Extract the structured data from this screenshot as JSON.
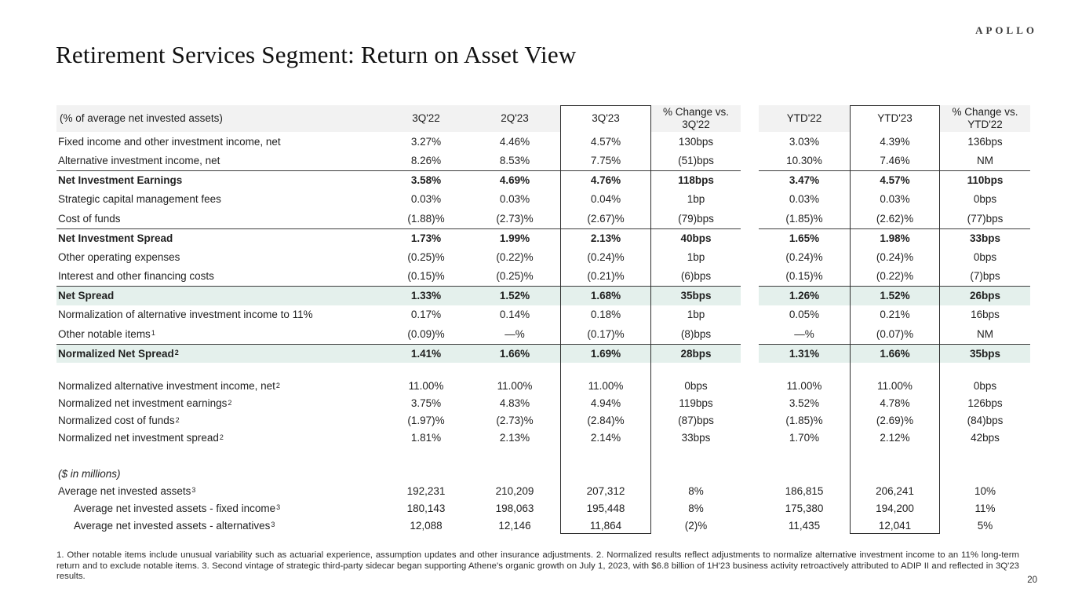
{
  "logo": "APOLLO",
  "title": "Retirement Services Segment: Return on Asset View",
  "page_number": "20",
  "table": {
    "columns": {
      "label": "(% of average net invested assets)",
      "c1": "3Q'22",
      "c2": "2Q'23",
      "c3": "3Q'23",
      "c4": "% Change vs. 3Q'22",
      "c5": "YTD'22",
      "c6": "YTD'23",
      "c7": "% Change vs. YTD'22"
    },
    "rows": [
      {
        "label": "Fixed income and other investment income, net",
        "values": [
          "3.27%",
          "4.46%",
          "4.57%",
          "130bps",
          "3.03%",
          "4.39%",
          "136bps"
        ]
      },
      {
        "label": "Alternative investment income, net",
        "values": [
          "8.26%",
          "8.53%",
          "7.75%",
          "(51)bps",
          "10.30%",
          "7.46%",
          "NM"
        ]
      },
      {
        "label": "Net Investment Earnings",
        "classes": "bold rule",
        "values": [
          "3.58%",
          "4.69%",
          "4.76%",
          "118bps",
          "3.47%",
          "4.57%",
          "110bps"
        ]
      },
      {
        "label": "Strategic capital management fees",
        "values": [
          "0.03%",
          "0.03%",
          "0.04%",
          "1bp",
          "0.03%",
          "0.03%",
          "0bps"
        ]
      },
      {
        "label": "Cost of funds",
        "values": [
          "(1.88)%",
          "(2.73)%",
          "(2.67)%",
          "(79)bps",
          "(1.85)%",
          "(2.62)%",
          "(77)bps"
        ]
      },
      {
        "label": "Net Investment Spread",
        "classes": "bold rule",
        "values": [
          "1.73%",
          "1.99%",
          "2.13%",
          "40bps",
          "1.65%",
          "1.98%",
          "33bps"
        ]
      },
      {
        "label": "Other operating expenses",
        "values": [
          "(0.25)%",
          "(0.22)%",
          "(0.24)%",
          "1bp",
          "(0.24)%",
          "(0.24)%",
          "0bps"
        ]
      },
      {
        "label": "Interest and other financing costs",
        "values": [
          "(0.15)%",
          "(0.25)%",
          "(0.21)%",
          "(6)bps",
          "(0.15)%",
          "(0.22)%",
          "(7)bps"
        ]
      },
      {
        "label": "Net Spread",
        "classes": "bold rule hl",
        "values": [
          "1.33%",
          "1.52%",
          "1.68%",
          "35bps",
          "1.26%",
          "1.52%",
          "26bps"
        ]
      },
      {
        "label": "Normalization of alternative investment income to 11%",
        "values": [
          "0.17%",
          "0.14%",
          "0.18%",
          "1bp",
          "0.05%",
          "0.21%",
          "16bps"
        ]
      },
      {
        "label": "Other notable items",
        "sup": "1",
        "values": [
          "(0.09)%",
          "—%",
          "(0.17)%",
          "(8)bps",
          "—%",
          "(0.07)%",
          "NM"
        ]
      },
      {
        "label": "Normalized Net Spread",
        "sup": "2",
        "classes": "bold rule hl",
        "values": [
          "1.41%",
          "1.66%",
          "1.69%",
          "28bps",
          "1.31%",
          "1.66%",
          "35bps"
        ]
      },
      {
        "classes": "sp18",
        "values": []
      },
      {
        "label": "Normalized alternative investment income, net",
        "sup": "2",
        "classes": "sm",
        "values": [
          "11.00%",
          "11.00%",
          "11.00%",
          "0bps",
          "11.00%",
          "11.00%",
          "0bps"
        ]
      },
      {
        "label": "Normalized net investment earnings",
        "sup": "2",
        "classes": "sm",
        "values": [
          "3.75%",
          "4.83%",
          "4.94%",
          "119bps",
          "3.52%",
          "4.78%",
          "126bps"
        ]
      },
      {
        "label": "Normalized cost of funds",
        "sup": "2",
        "classes": "sm",
        "values": [
          "(1.97)%",
          "(2.73)%",
          "(2.84)%",
          "(87)bps",
          "(1.85)%",
          "(2.69)%",
          "(84)bps"
        ]
      },
      {
        "label": "Normalized net investment spread",
        "sup": "2",
        "classes": "sm",
        "values": [
          "1.81%",
          "2.13%",
          "2.14%",
          "33bps",
          "1.70%",
          "2.12%",
          "42bps"
        ]
      },
      {
        "classes": "sp24",
        "values": []
      },
      {
        "label": "($ in millions)",
        "classes": "sm italic",
        "values": []
      },
      {
        "label": "Average net invested assets",
        "sup": "3",
        "classes": "sm",
        "values": [
          "192,231",
          "210,209",
          "207,312",
          "8%",
          "186,815",
          "206,241",
          "10%"
        ]
      },
      {
        "label": "Average net invested assets - fixed income",
        "sup": "3",
        "classes": "sm indent",
        "values": [
          "180,143",
          "198,063",
          "195,448",
          "8%",
          "175,380",
          "194,200",
          "11%"
        ]
      },
      {
        "label": "Average net invested assets - alternatives",
        "sup": "3",
        "classes": "sm indent",
        "values": [
          "12,088",
          "12,146",
          "11,864",
          "(2)%",
          "11,435",
          "12,041",
          "5%"
        ]
      }
    ]
  },
  "footnote": "1. Other notable items include unusual variability such as actuarial experience, assumption updates and other insurance adjustments. 2. Normalized results reflect adjustments to normalize alternative investment income to an 11% long-term return and to exclude notable items. 3. Second vintage of strategic third-party sidecar began supporting Athene's organic growth on July 1, 2023, with $6.8 billion of 1H'23 business activity retroactively attributed to ADIP II and reflected in 3Q'23 results.",
  "highlight_color": "#e4f0ec",
  "header_bg_color": "#f2f2f2"
}
